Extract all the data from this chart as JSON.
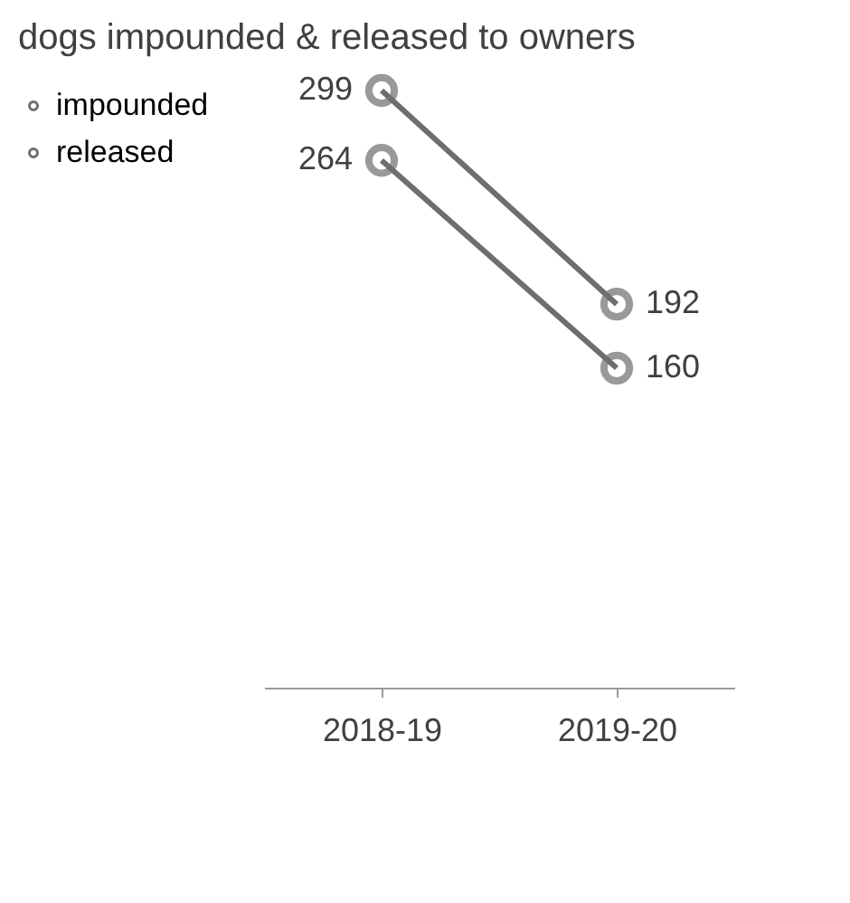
{
  "chart_data": {
    "type": "line",
    "title": "dogs impounded  & released to owners",
    "categories": [
      "2018-19",
      "2019-20"
    ],
    "series": [
      {
        "name": "impounded",
        "color": "#6e6e6e",
        "values": [
          299,
          192
        ]
      },
      {
        "name": "released",
        "color": "#6e6e6e",
        "values": [
          264,
          160
        ]
      }
    ],
    "data_labels": true,
    "marker": "circle",
    "line_style": "solid",
    "legend": "left",
    "grid": false
  }
}
